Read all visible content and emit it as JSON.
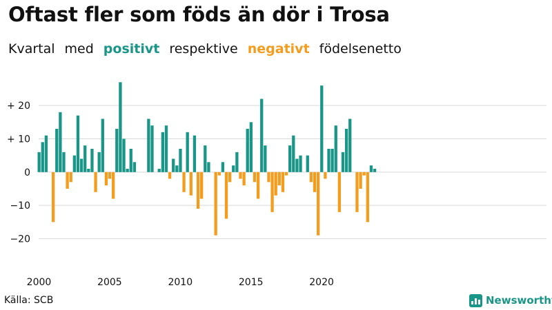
{
  "title": "Oftast fler som föds än dör i Trosa",
  "subtitle": {
    "part1": "Kvartal",
    "part2": "med",
    "positive": "positivt",
    "part3": "respektive",
    "negative": "negativt",
    "part4": "födelsenetto"
  },
  "source": "Källa: SCB",
  "brand": {
    "name": "Newsworthy",
    "icon": "newsworthy-logo-icon"
  },
  "colors": {
    "positive": "#1a9688",
    "negative": "#f39c1d",
    "grid": "#d9d9d9"
  },
  "chart_data": {
    "type": "bar",
    "start_year": 2000,
    "ylim": [
      -29,
      31
    ],
    "y_ticks": [
      {
        "value": 20,
        "label": "+ 20"
      },
      {
        "value": 10,
        "label": "+ 10"
      },
      {
        "value": 0,
        "label": "0"
      },
      {
        "value": -10,
        "label": "−10"
      },
      {
        "value": -20,
        "label": "−20"
      }
    ],
    "x_ticks": [
      {
        "year": 2000,
        "label": "2000"
      },
      {
        "year": 2005,
        "label": "2005"
      },
      {
        "year": 2010,
        "label": "2010"
      },
      {
        "year": 2015,
        "label": "2015"
      },
      {
        "year": 2020,
        "label": "2020"
      }
    ],
    "values": [
      6,
      9,
      11,
      0,
      -15,
      13,
      18,
      6,
      -5,
      -3,
      5,
      17,
      4,
      8,
      1,
      7,
      -6,
      6,
      16,
      -4,
      -2,
      -8,
      13,
      27,
      10,
      1,
      7,
      3,
      0,
      0,
      0,
      16,
      14,
      0,
      1,
      12,
      14,
      -2,
      4,
      2,
      7,
      -6,
      12,
      -7,
      11,
      -11,
      -8,
      8,
      3,
      0,
      -19,
      -1,
      3,
      -14,
      -3,
      2,
      6,
      -2,
      -4,
      13,
      15,
      -3,
      -8,
      22,
      8,
      -3,
      -12,
      -7,
      -4,
      -6,
      -1,
      8,
      11,
      4,
      5,
      0,
      5,
      -3,
      -6,
      -19,
      26,
      -2,
      7,
      7,
      14,
      -12,
      6,
      13,
      16,
      0,
      -12,
      -5,
      -1,
      -15,
      2,
      1
    ]
  }
}
